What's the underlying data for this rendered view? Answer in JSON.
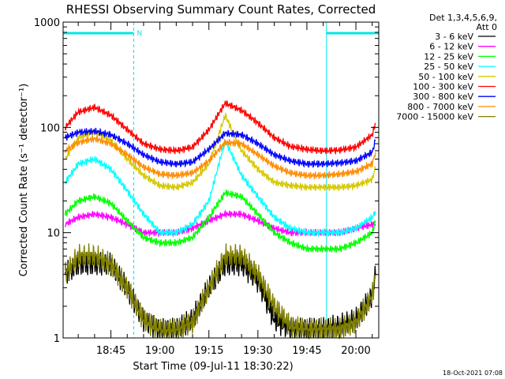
{
  "chart_data": {
    "type": "line",
    "title": "RHESSI Observing Summary Count Rates, Corrected",
    "xlabel": "Start Time (09-Jul-11 18:30:22)",
    "ylabel": "Corrected Count Rate (s⁻¹ detector⁻¹)",
    "yscale": "log",
    "ylim": [
      1,
      1000
    ],
    "xlim_minutes": [
      18.5,
      20.1
    ],
    "x_ticks": [
      "18:45",
      "19:00",
      "19:15",
      "19:30",
      "19:45",
      "20:00"
    ],
    "y_ticks": [
      "1",
      "10",
      "100",
      "1000"
    ],
    "legend_header": [
      "Det 1,3,4,5,6,9,",
      "Att 0"
    ],
    "legend_position": "right",
    "timestamp": "18-Oct-2021 07:08",
    "night_marker": "N",
    "night_intervals": [
      [
        "18:30",
        "18:52"
      ],
      [
        "19:51",
        "20:07"
      ]
    ],
    "series": [
      {
        "name": "3 - 6 keV",
        "color": "#000000",
        "x": [
          "18:31",
          "18:35",
          "18:40",
          "18:45",
          "18:50",
          "18:55",
          "19:00",
          "19:05",
          "19:10",
          "19:15",
          "19:20",
          "19:25",
          "19:30",
          "19:35",
          "19:40",
          "19:45",
          "19:50",
          "19:55",
          "20:00",
          "20:05",
          "20:06"
        ],
        "values": [
          4,
          5,
          5,
          5,
          3,
          1.5,
          1.2,
          1.2,
          1.5,
          3,
          5,
          5,
          3.5,
          1.5,
          1.2,
          1.2,
          1.2,
          1.3,
          1.5,
          2.5,
          4
        ]
      },
      {
        "name": "6 - 12 keV",
        "color": "#ff00ff",
        "x": [
          "18:31",
          "18:35",
          "18:40",
          "18:45",
          "18:50",
          "18:55",
          "19:00",
          "19:05",
          "19:10",
          "19:15",
          "19:20",
          "19:25",
          "19:30",
          "19:35",
          "19:40",
          "19:45",
          "19:50",
          "19:55",
          "20:00",
          "20:05",
          "20:06"
        ],
        "values": [
          12,
          14,
          15,
          14,
          12,
          10,
          10,
          10,
          11,
          13,
          15,
          15,
          13,
          11,
          10,
          10,
          10,
          10,
          11,
          12,
          12
        ]
      },
      {
        "name": "12 - 25 keV",
        "color": "#00ff00",
        "x": [
          "18:31",
          "18:35",
          "18:40",
          "18:45",
          "18:50",
          "18:55",
          "19:00",
          "19:05",
          "19:10",
          "19:15",
          "19:20",
          "19:25",
          "19:30",
          "19:35",
          "19:40",
          "19:45",
          "19:50",
          "19:55",
          "20:00",
          "20:05",
          "20:06"
        ],
        "values": [
          15,
          20,
          22,
          19,
          13,
          9,
          8,
          8,
          9,
          14,
          24,
          22,
          15,
          10,
          8,
          7,
          7,
          7,
          8,
          10,
          13
        ]
      },
      {
        "name": "25 - 50 keV",
        "color": "#00ffff",
        "x": [
          "18:31",
          "18:35",
          "18:40",
          "18:45",
          "18:50",
          "18:55",
          "19:00",
          "19:05",
          "19:10",
          "19:15",
          "19:20",
          "19:25",
          "19:30",
          "19:35",
          "19:40",
          "19:45",
          "19:50",
          "19:55",
          "20:00",
          "20:05",
          "20:06"
        ],
        "values": [
          30,
          45,
          50,
          40,
          25,
          15,
          10,
          10,
          12,
          20,
          75,
          35,
          22,
          14,
          11,
          10,
          10,
          10,
          11,
          14,
          16
        ]
      },
      {
        "name": "50 - 100 keV",
        "color": "#d4c800",
        "x": [
          "18:31",
          "18:35",
          "18:40",
          "18:45",
          "18:50",
          "18:55",
          "19:00",
          "19:05",
          "19:10",
          "19:15",
          "19:20",
          "19:25",
          "19:30",
          "19:35",
          "19:40",
          "19:45",
          "19:50",
          "19:55",
          "20:00",
          "20:05",
          "20:06"
        ],
        "values": [
          50,
          80,
          90,
          75,
          50,
          35,
          28,
          27,
          30,
          45,
          130,
          60,
          40,
          30,
          28,
          27,
          27,
          27,
          28,
          32,
          42
        ]
      },
      {
        "name": "100 - 300 keV",
        "color": "#ff0000",
        "x": [
          "18:31",
          "18:35",
          "18:40",
          "18:45",
          "18:50",
          "18:55",
          "19:00",
          "19:05",
          "19:10",
          "19:15",
          "19:20",
          "19:25",
          "19:30",
          "19:35",
          "19:40",
          "19:45",
          "19:50",
          "19:55",
          "20:00",
          "20:05",
          "20:06"
        ],
        "values": [
          100,
          140,
          155,
          130,
          95,
          70,
          62,
          60,
          65,
          95,
          170,
          145,
          110,
          80,
          66,
          62,
          60,
          61,
          65,
          85,
          110
        ]
      },
      {
        "name": "300 - 800 keV",
        "color": "#0000ff",
        "x": [
          "18:31",
          "18:35",
          "18:40",
          "18:45",
          "18:50",
          "18:55",
          "19:00",
          "19:05",
          "19:10",
          "19:15",
          "19:20",
          "19:25",
          "19:30",
          "19:35",
          "19:40",
          "19:45",
          "19:50",
          "19:55",
          "20:00",
          "20:05",
          "20:06"
        ],
        "values": [
          80,
          90,
          92,
          85,
          70,
          55,
          47,
          45,
          47,
          62,
          88,
          85,
          70,
          55,
          48,
          45,
          45,
          46,
          48,
          58,
          75
        ]
      },
      {
        "name": "800 - 7000 keV",
        "color": "#ff8c00",
        "x": [
          "18:31",
          "18:35",
          "18:40",
          "18:45",
          "18:50",
          "18:55",
          "19:00",
          "19:05",
          "19:10",
          "19:15",
          "19:20",
          "19:25",
          "19:30",
          "19:35",
          "19:40",
          "19:45",
          "19:50",
          "19:55",
          "20:00",
          "20:05",
          "20:06"
        ],
        "values": [
          60,
          72,
          78,
          70,
          55,
          42,
          36,
          35,
          37,
          48,
          72,
          70,
          55,
          43,
          37,
          35,
          35,
          36,
          38,
          45,
          58
        ]
      },
      {
        "name": "7000 - 15000 keV",
        "color": "#808000",
        "x": [
          "18:31",
          "18:35",
          "18:40",
          "18:45",
          "18:50",
          "18:55",
          "19:00",
          "19:05",
          "19:10",
          "19:15",
          "19:20",
          "19:25",
          "19:30",
          "19:35",
          "19:40",
          "19:45",
          "19:50",
          "19:55",
          "20:00",
          "20:05",
          "20:06"
        ],
        "values": [
          4,
          6,
          6,
          5,
          3,
          1.5,
          1.2,
          1.2,
          1.4,
          3,
          6,
          6,
          4,
          2,
          1.3,
          1.2,
          1.2,
          1.2,
          1.4,
          2.5,
          4
        ]
      }
    ]
  }
}
